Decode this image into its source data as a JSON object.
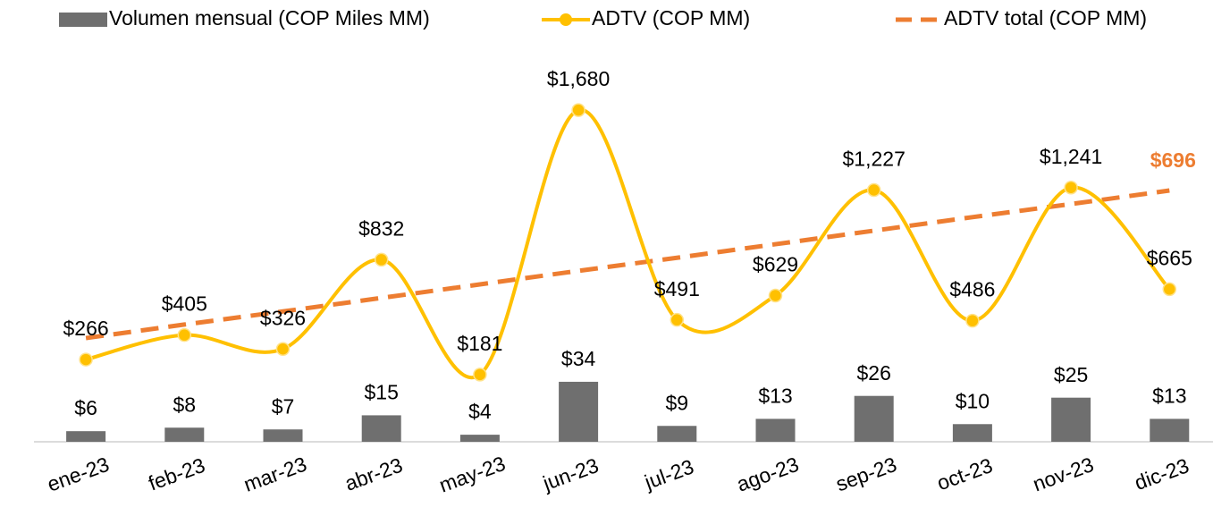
{
  "chart_data": {
    "type": "combo",
    "categories": [
      "ene-23",
      "feb-23",
      "mar-23",
      "abr-23",
      "may-23",
      "jun-23",
      "jul-23",
      "ago-23",
      "sep-23",
      "oct-23",
      "nov-23",
      "dic-23"
    ],
    "ylim": [
      0,
      220
    ],
    "y2lim": [
      -200,
      2000
    ],
    "series": [
      {
        "name": "Volumen mensual (COP Miles MM)",
        "type": "bar",
        "color": "#6f6f6f",
        "values": [
          6,
          8,
          7,
          15,
          4,
          34,
          9,
          13,
          26,
          10,
          25,
          13
        ],
        "value_labels": [
          "$6",
          "$8",
          "$7",
          "$15",
          "$4",
          "$34",
          "$9",
          "$13",
          "$26",
          "$10",
          "$25",
          "$13"
        ]
      },
      {
        "name": "ADTV (COP MM)",
        "type": "line",
        "axis": "y2",
        "smooth": true,
        "color": "#FFC000",
        "values": [
          266,
          405,
          326,
          832,
          181,
          1680,
          491,
          629,
          1227,
          486,
          1241,
          665
        ],
        "value_labels": [
          "$266",
          "$405",
          "$326",
          "$832",
          "$181",
          "$1,680",
          "$491",
          "$629",
          "$1,227",
          "$486",
          "$1,241",
          "$665"
        ]
      },
      {
        "name": "ADTV total (COP MM)",
        "type": "line",
        "dashed": true,
        "color": "#ED7D31",
        "ylim": [
          158,
          989
        ],
        "values": [
          380,
          409,
          437,
          466,
          495,
          524,
          552,
          581,
          610,
          639,
          667,
          696
        ],
        "value_labels": [
          null,
          null,
          null,
          null,
          null,
          null,
          null,
          null,
          null,
          null,
          null,
          "$696"
        ]
      }
    ]
  }
}
